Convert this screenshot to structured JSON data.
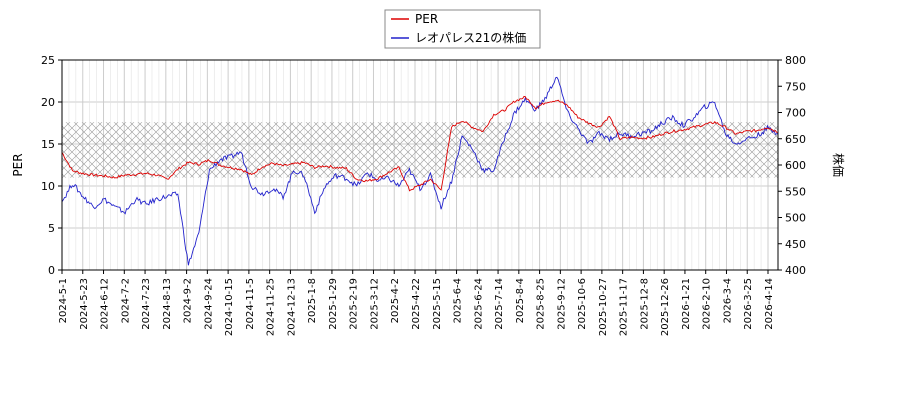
{
  "chart_data": {
    "type": "line",
    "title": "",
    "legend": {
      "placement": "top-center"
    },
    "xlabel": "",
    "ylabel_left": "PER",
    "ylabel_right": "株価",
    "ylim_left": [
      0,
      25
    ],
    "ylim_right": [
      400,
      800
    ],
    "yticks_left": [
      "0",
      "5",
      "10",
      "15",
      "20",
      "25"
    ],
    "yticks_right": [
      "400",
      "450",
      "500",
      "550",
      "600",
      "650",
      "700",
      "750",
      "800"
    ],
    "x_tick_labels": [
      "2024-5-1",
      "2024-5-23",
      "2024-6-12",
      "2024-7-2",
      "2024-7-23",
      "2024-8-13",
      "2024-9-2",
      "2024-9-24",
      "2024-10-15",
      "2024-11-5",
      "2024-11-25",
      "2024-12-13",
      "2025-1-8",
      "2025-1-29",
      "2025-2-19",
      "2025-3-12",
      "2025-4-2",
      "2025-4-22",
      "2025-5-15",
      "2025-6-4",
      "2025-6-24",
      "2025-7-14",
      "2025-8-4",
      "2025-8-25",
      "2025-9-12",
      "2025-10-6",
      "2025-10-27",
      "2025-11-17",
      "2025-12-8",
      "2025-12-26",
      "2026-1-21",
      "2026-2-10",
      "2026-3-4",
      "2026-3-25",
      "2026-4-14"
    ],
    "grid": true,
    "band": {
      "axis": "left",
      "from": 11,
      "to": 17.6,
      "pattern": "crosshatch"
    },
    "series": [
      {
        "name": "PER",
        "axis": "left",
        "color": "#dd0000",
        "values": [
          14.0,
          11.8,
          11.5,
          11.3,
          11.2,
          11.0,
          11.3,
          11.4,
          11.5,
          11.3,
          10.8,
          12.0,
          12.8,
          12.6,
          13.1,
          12.5,
          12.2,
          12.0,
          11.3,
          12.3,
          12.7,
          12.4,
          12.6,
          12.8,
          12.2,
          12.4,
          12.2,
          12.1,
          10.8,
          10.6,
          10.9,
          11.6,
          12.2,
          9.5,
          10.1,
          10.8,
          9.5,
          17.0,
          17.8,
          17.0,
          16.5,
          18.5,
          19.0,
          20.1,
          20.6,
          19.3,
          20.0,
          20.2,
          19.6,
          18.2,
          17.5,
          17.0,
          18.3,
          15.6,
          15.8,
          15.7,
          15.8,
          16.2,
          16.5,
          16.7,
          17.0,
          17.3,
          17.6,
          17.0,
          16.2,
          16.5,
          16.6,
          17.0,
          16.4
        ]
      },
      {
        "name": "レオパレス21の株価",
        "axis": "right",
        "color": "#2222cc",
        "values": [
          530,
          565,
          540,
          520,
          535,
          520,
          510,
          535,
          525,
          535,
          540,
          545,
          410,
          470,
          590,
          610,
          615,
          625,
          560,
          545,
          555,
          540,
          590,
          580,
          510,
          560,
          580,
          575,
          560,
          585,
          570,
          575,
          560,
          590,
          555,
          580,
          520,
          570,
          655,
          630,
          590,
          590,
          650,
          700,
          725,
          705,
          730,
          770,
          700,
          670,
          640,
          660,
          650,
          660,
          655,
          660,
          665,
          680,
          690,
          675,
          690,
          710,
          720,
          660,
          640,
          650,
          655,
          670,
          660
        ]
      }
    ]
  }
}
